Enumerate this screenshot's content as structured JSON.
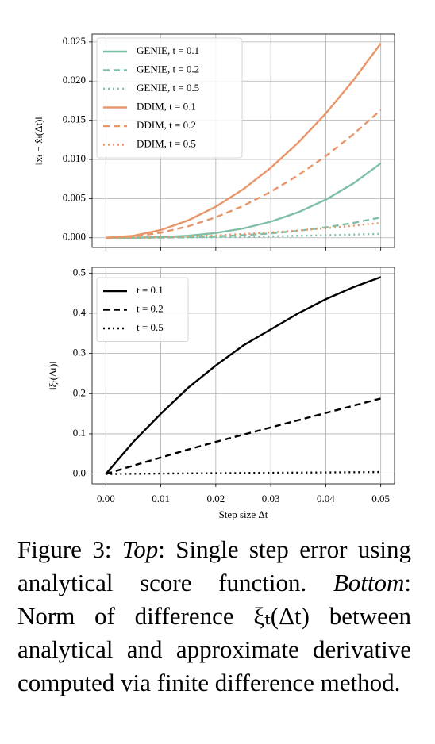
{
  "chart_data": [
    {
      "type": "line",
      "y_label": "‖xₜ − x̂ₜ(Δt)‖",
      "x": [
        0,
        0.005,
        0.01,
        0.015,
        0.02,
        0.025,
        0.03,
        0.035,
        0.04,
        0.045,
        0.05
      ],
      "series": [
        {
          "name": "GENIE, t = 0.1",
          "color": "#7fbfa6",
          "linestyle": "solid",
          "values": [
            0,
            1e-05,
            8e-05,
            0.00026,
            0.00061,
            0.00119,
            0.00205,
            0.00326,
            0.00486,
            0.00693,
            0.0095
          ]
        },
        {
          "name": "GENIE, t = 0.2",
          "color": "#7fbfa6",
          "linestyle": "dashed",
          "values": [
            0,
            0,
            2e-05,
            7e-05,
            0.00017,
            0.00033,
            0.00056,
            0.00089,
            0.00133,
            0.0019,
            0.0026
          ]
        },
        {
          "name": "GENIE, t = 0.5",
          "color": "#7fbfa6",
          "linestyle": "dotted",
          "values": [
            0,
            5e-06,
            2e-05,
            4.5e-05,
            8e-05,
            0.000125,
            0.00018,
            0.000245,
            0.00032,
            0.000405,
            0.0005
          ]
        },
        {
          "name": "DDIM, t = 0.1",
          "color": "#e8956a",
          "linestyle": "solid",
          "values": [
            0,
            0.00025,
            0.00099,
            0.00223,
            0.00397,
            0.0062,
            0.00893,
            0.01215,
            0.01587,
            0.02009,
            0.0248
          ]
        },
        {
          "name": "DDIM, t = 0.2",
          "color": "#e8956a",
          "linestyle": "dashed",
          "values": [
            0,
            0.00016,
            0.00065,
            0.00147,
            0.00261,
            0.00408,
            0.00587,
            0.00799,
            0.01043,
            0.0132,
            0.0163
          ]
        },
        {
          "name": "DDIM, t = 0.5",
          "color": "#e8956a",
          "linestyle": "dotted",
          "values": [
            0,
            2e-05,
            8e-05,
            0.00017,
            0.0003,
            0.00048,
            0.00068,
            0.00093,
            0.00122,
            0.00154,
            0.0019
          ]
        }
      ],
      "xlim": [
        -0.0025,
        0.0525
      ],
      "xticks": [
        0,
        0.01,
        0.02,
        0.03,
        0.04,
        0.05
      ],
      "show_xtick_labels": false,
      "ylim": [
        -0.00124,
        0.026
      ],
      "yticks": [
        {
          "value": 0,
          "label": "0.000"
        },
        {
          "value": 0.005,
          "label": "0.005"
        },
        {
          "value": 0.01,
          "label": "0.010"
        },
        {
          "value": 0.015,
          "label": "0.015"
        },
        {
          "value": 0.02,
          "label": "0.020"
        },
        {
          "value": 0.025,
          "label": "0.025"
        }
      ],
      "grid": true,
      "legend": "upper left"
    },
    {
      "type": "line",
      "x_label": "Step size Δt",
      "y_label": "‖ξₜ(Δt)‖",
      "x": [
        0,
        0.005,
        0.01,
        0.015,
        0.02,
        0.025,
        0.03,
        0.035,
        0.04,
        0.045,
        0.05
      ],
      "series": [
        {
          "name": "t = 0.1",
          "color": "#000000",
          "linestyle": "solid",
          "values": [
            0,
            0.08,
            0.15,
            0.215,
            0.27,
            0.32,
            0.36,
            0.4,
            0.435,
            0.465,
            0.49
          ]
        },
        {
          "name": "t = 0.2",
          "color": "#000000",
          "linestyle": "dashed",
          "values": [
            0,
            0.021,
            0.041,
            0.061,
            0.08,
            0.098,
            0.116,
            0.134,
            0.152,
            0.17,
            0.188
          ]
        },
        {
          "name": "t = 0.5",
          "color": "#000000",
          "linestyle": "dotted",
          "values": [
            0,
            0.0005,
            0.001,
            0.0015,
            0.002,
            0.0025,
            0.003,
            0.0035,
            0.004,
            0.0045,
            0.005
          ]
        }
      ],
      "xlim": [
        -0.0025,
        0.0525
      ],
      "xticks": [
        {
          "value": 0,
          "label": "0.00"
        },
        {
          "value": 0.01,
          "label": "0.01"
        },
        {
          "value": 0.02,
          "label": "0.02"
        },
        {
          "value": 0.03,
          "label": "0.03"
        },
        {
          "value": 0.04,
          "label": "0.04"
        },
        {
          "value": 0.05,
          "label": "0.05"
        }
      ],
      "show_xtick_labels": true,
      "ylim": [
        -0.0245,
        0.5145
      ],
      "yticks": [
        {
          "value": 0,
          "label": "0.0"
        },
        {
          "value": 0.1,
          "label": "0.1"
        },
        {
          "value": 0.2,
          "label": "0.2"
        },
        {
          "value": 0.3,
          "label": "0.3"
        },
        {
          "value": 0.4,
          "label": "0.4"
        },
        {
          "value": 0.5,
          "label": "0.5"
        }
      ],
      "grid": true,
      "legend": "upper left"
    }
  ],
  "caption": {
    "label": "Figure 3:",
    "top_label": "Top",
    "top_text": ": Single step error using analytical score function.",
    "bottom_label": "Bottom",
    "bottom_text": ":  Norm of difference ξₜ(Δt) between analytical and approximate derivative computed via finite difference method."
  }
}
